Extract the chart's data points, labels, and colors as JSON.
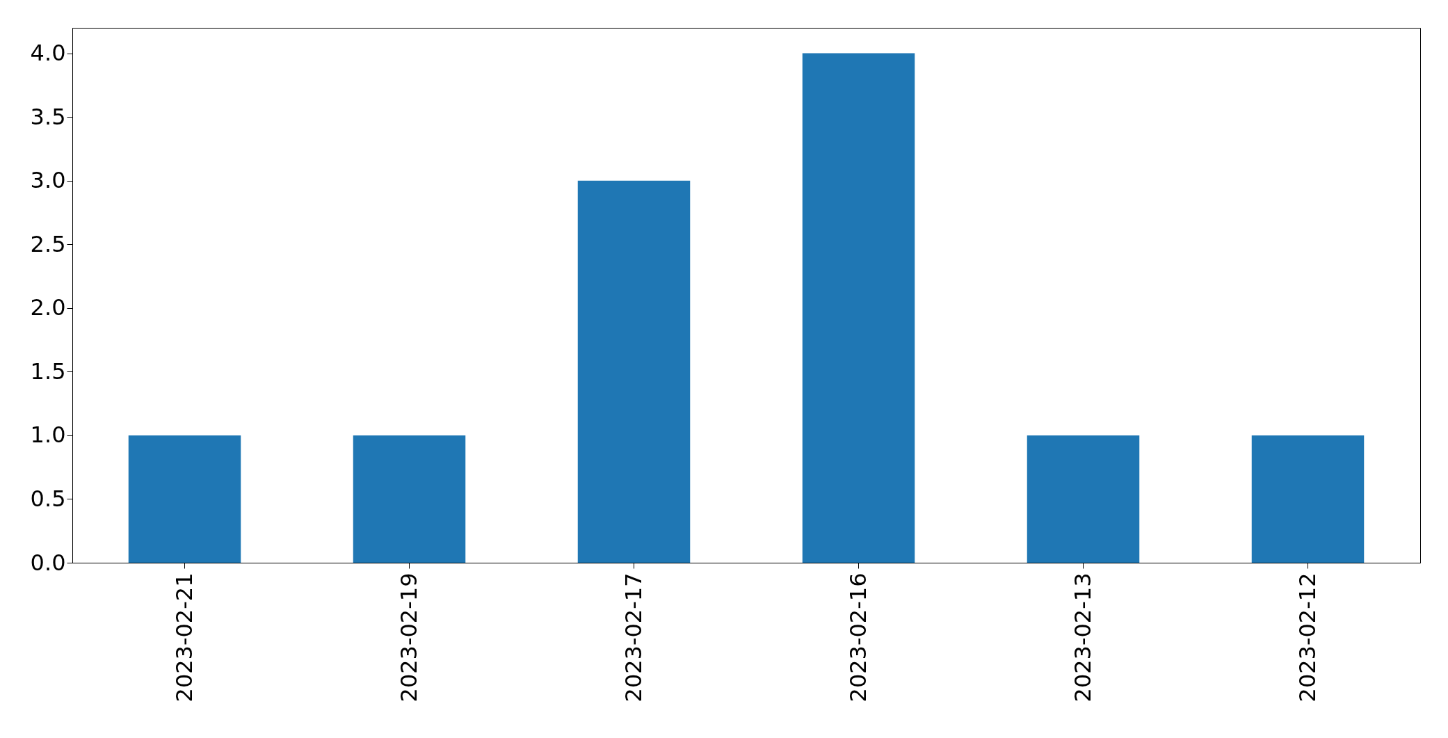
{
  "chart_data": {
    "type": "bar",
    "categories": [
      "2023-02-21",
      "2023-02-19",
      "2023-02-17",
      "2023-02-16",
      "2023-02-13",
      "2023-02-12"
    ],
    "values": [
      1,
      1,
      3,
      4,
      1,
      1
    ],
    "color": "#1f77b4",
    "ylim": [
      0,
      4.2
    ],
    "yticks": [
      {
        "value": 0,
        "label": "0.0"
      },
      {
        "value": 0.5,
        "label": "0.5"
      },
      {
        "value": 1,
        "label": "1.0"
      },
      {
        "value": 1.5,
        "label": "1.5"
      },
      {
        "value": 2,
        "label": "2.0"
      },
      {
        "value": 2.5,
        "label": "2.5"
      },
      {
        "value": 3,
        "label": "3.0"
      },
      {
        "value": 3.5,
        "label": "3.5"
      },
      {
        "value": 4,
        "label": "4.0"
      }
    ],
    "grid": false
  }
}
